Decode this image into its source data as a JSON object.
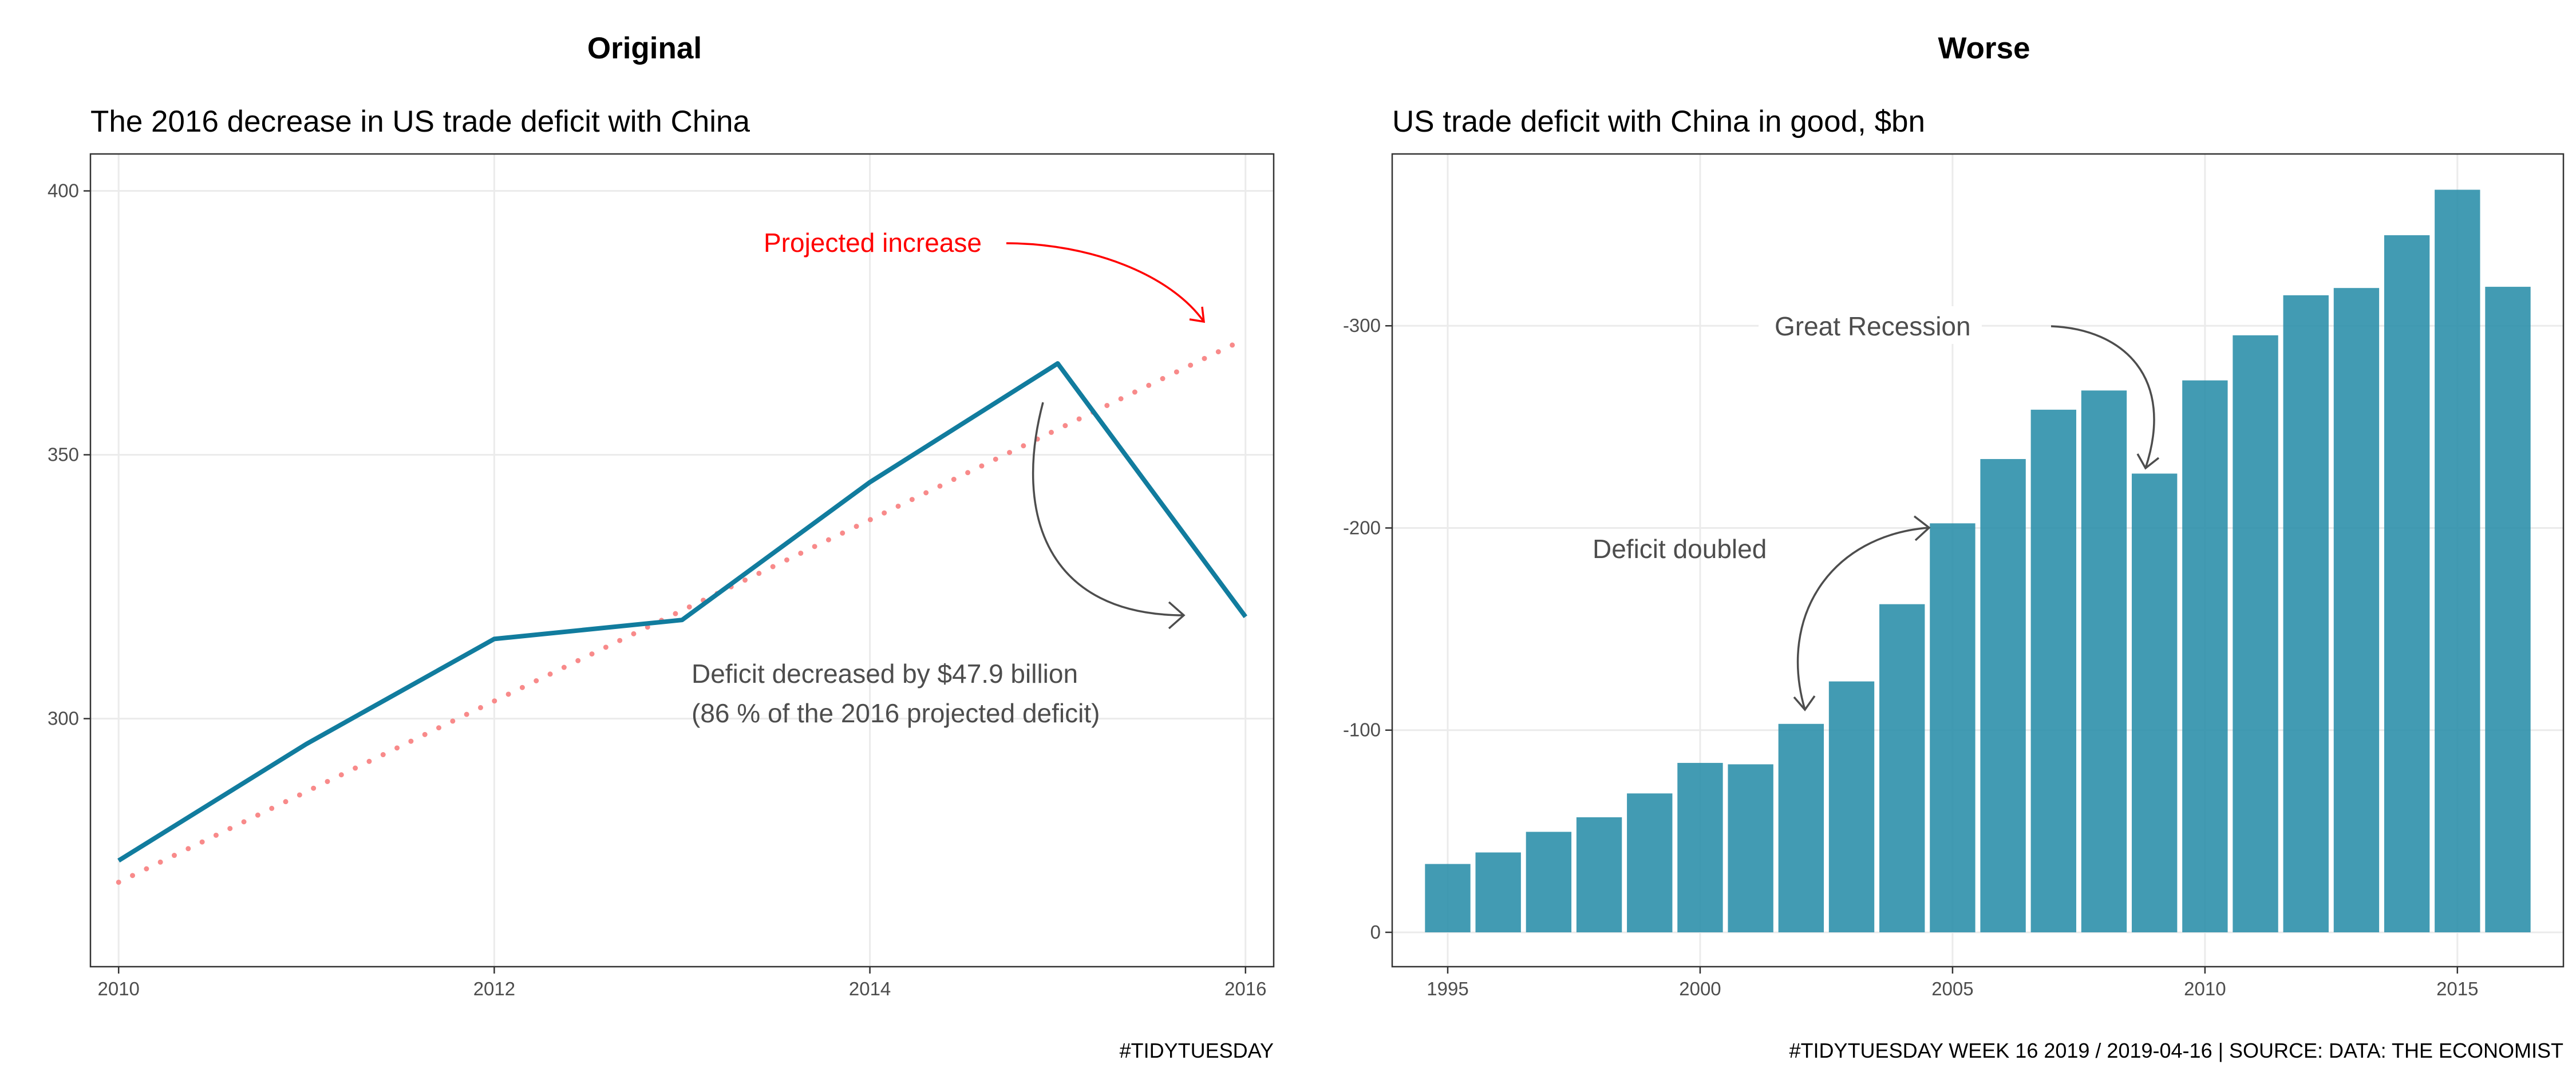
{
  "colors": {
    "series": "#117c9e",
    "bar": "#268ca8",
    "projection": "#f88a8a",
    "annotation_red": "#ff0000",
    "annotation_gray": "#4d4d4d"
  },
  "panels": {
    "left_title": "Original",
    "right_title": "Worse"
  },
  "captions": {
    "left": "#TIDYTUESDAY",
    "right": "#TIDYTUESDAY WEEK 16 2019 / 2019-04-16 | SOURCE: DATA: THE ECONOMIST"
  },
  "chart_data": [
    {
      "type": "line",
      "title": "The 2016 decrease in US trade deficit with China",
      "xlabel": "",
      "ylabel": "",
      "xlim": [
        2009.85,
        2016.15
      ],
      "ylim": [
        253,
        407
      ],
      "x_ticks": [
        2010,
        2012,
        2014,
        2016
      ],
      "y_ticks": [
        300,
        350,
        400
      ],
      "grid": true,
      "series": [
        {
          "style": "solid",
          "x": [
            2010,
            2011,
            2012,
            2013,
            2014,
            2015,
            2016
          ],
          "values": [
            273.1,
            295.2,
            315.1,
            318.7,
            344.8,
            367.3,
            319.3
          ]
        },
        {
          "style": "dotted",
          "x": [
            2010,
            2016
          ],
          "values": [
            269,
            372
          ]
        }
      ],
      "annotations": [
        {
          "text": "Projected increase",
          "color": "red"
        },
        {
          "text": "Deficit decreased by $47.9 billion",
          "color": "gray"
        },
        {
          "text": "(86 % of the 2016 projected deficit)",
          "color": "gray"
        }
      ]
    },
    {
      "type": "bar",
      "title": "US trade deficit with China in good, $bn",
      "xlabel": "",
      "ylabel": "",
      "xlim": [
        1993.9,
        2017.1
      ],
      "ylim": [
        -385,
        17
      ],
      "x_ticks": [
        1995,
        2000,
        2005,
        2010,
        2015
      ],
      "y_ticks": [
        0,
        -100,
        -200,
        -300
      ],
      "grid": true,
      "categories": [
        1995,
        1996,
        1997,
        1998,
        1999,
        2000,
        2001,
        2002,
        2003,
        2004,
        2005,
        2006,
        2007,
        2008,
        2009,
        2010,
        2011,
        2012,
        2013,
        2014,
        2015,
        2016
      ],
      "values": [
        -33.8,
        -39.5,
        -49.7,
        -56.9,
        -68.7,
        -83.8,
        -83.1,
        -103.1,
        -124.1,
        -162.3,
        -202.3,
        -234.1,
        -258.5,
        -268.0,
        -226.9,
        -273.0,
        -295.3,
        -315.1,
        -318.7,
        -344.8,
        -367.3,
        -319.3
      ],
      "annotations": [
        {
          "text": "Great Recession",
          "color": "gray"
        },
        {
          "text": "Deficit doubled",
          "color": "gray"
        }
      ]
    }
  ]
}
